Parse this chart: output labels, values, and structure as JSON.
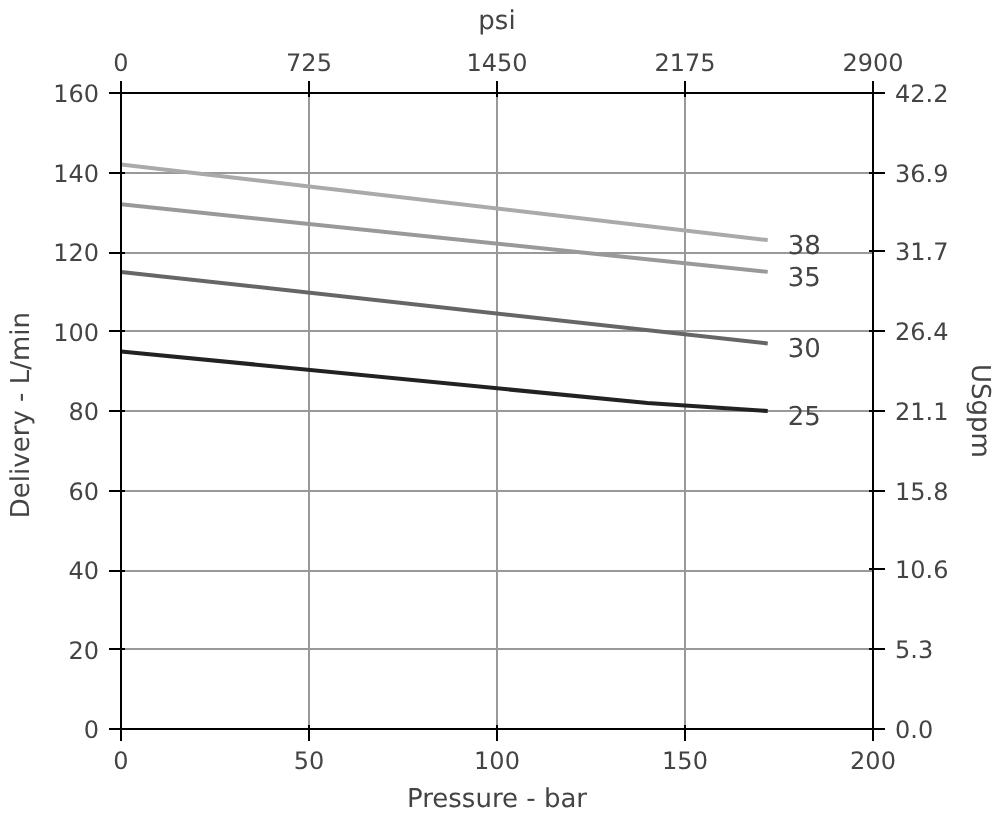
{
  "chart_data": {
    "type": "line",
    "xlabel": "Pressure - bar",
    "ylabel": "Delivery  - L/min",
    "y2label": "USgpm",
    "x2label": "psi",
    "xlim": [
      0,
      200
    ],
    "xticks": [
      0,
      50,
      100,
      150,
      200
    ],
    "ylim": [
      0,
      160
    ],
    "yticks": [
      0,
      20,
      40,
      60,
      80,
      100,
      120,
      140,
      160
    ],
    "y2lim": [
      0,
      42.2
    ],
    "y2ticks": [
      {
        "value": 0,
        "label": "0.0"
      },
      5.3,
      10.6,
      15.8,
      21.1,
      26.4,
      31.7,
      36.9,
      42.2
    ],
    "x2lim": [
      0,
      2900
    ],
    "x2ticks": [
      0,
      725,
      1450,
      2175,
      2900
    ],
    "grid": true,
    "marker": "none",
    "line_style": "solid",
    "series": [
      {
        "name": "38",
        "color": "#aaaaaa",
        "x": [
          0,
          172
        ],
        "values": [
          142,
          123
        ]
      },
      {
        "name": "35",
        "color": "#999999",
        "x": [
          0,
          172
        ],
        "values": [
          132,
          115
        ]
      },
      {
        "name": "30",
        "color": "#666666",
        "x": [
          0,
          172
        ],
        "values": [
          115,
          97
        ]
      },
      {
        "name": "25",
        "color": "#222222",
        "x": [
          0,
          140,
          172
        ],
        "values": [
          95,
          82,
          80
        ]
      }
    ]
  }
}
